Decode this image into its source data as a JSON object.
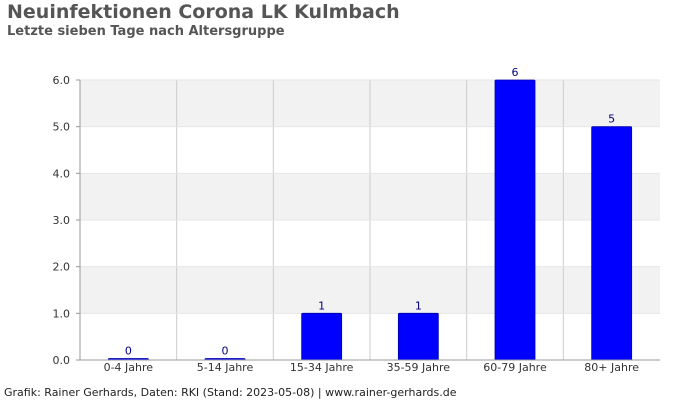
{
  "header": {
    "title": "Neuinfektionen Corona LK Kulmbach",
    "subtitle": "Letzte sieben Tage nach Altersgruppe"
  },
  "footer": {
    "text": "Grafik: Rainer Gerhards, Daten: RKI (Stand: 2023-05-08) | www.rainer-gerhards.de"
  },
  "colors": {
    "bar": "#0000ff",
    "bar_border": "#0000aa",
    "band": "#f2f2f2",
    "grid": "#cccccc",
    "value_label": "#000080",
    "axis_text": "#333333"
  },
  "chart_data": {
    "type": "bar",
    "categories": [
      "0-4 Jahre",
      "5-14 Jahre",
      "15-34 Jahre",
      "35-59 Jahre",
      "60-79 Jahre",
      "80+ Jahre"
    ],
    "values": [
      0,
      0,
      1,
      1,
      6,
      5
    ],
    "ylim": [
      0,
      6
    ],
    "yticks": [
      "0.0",
      "1.0",
      "2.0",
      "3.0",
      "4.0",
      "5.0",
      "6.0"
    ],
    "xlabel": "",
    "ylabel": "",
    "grid": true,
    "legend": "none"
  }
}
